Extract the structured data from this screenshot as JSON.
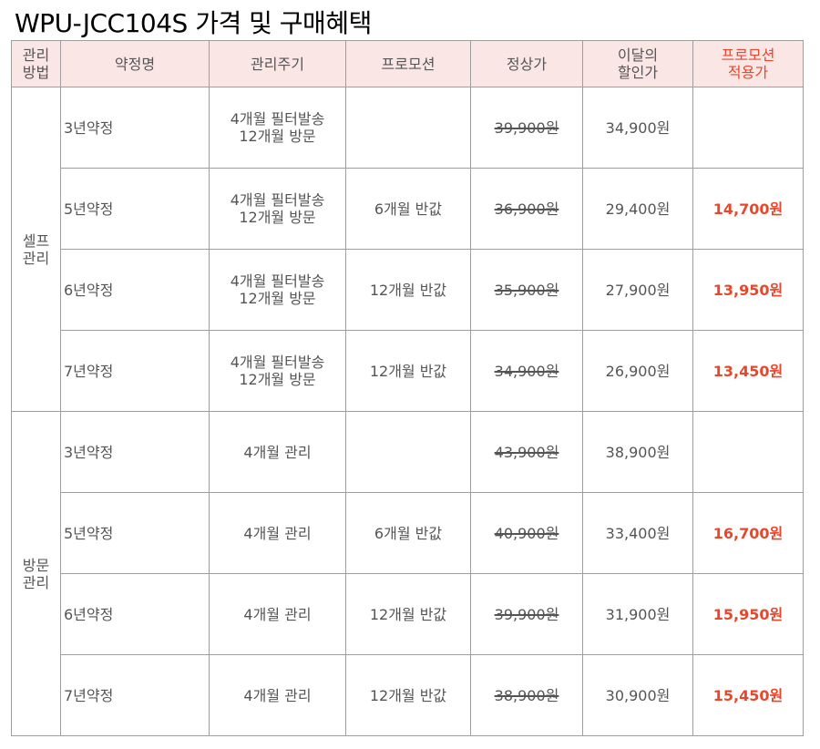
{
  "title": "WPU-JCC104S 가격 및 구매혜택",
  "headers": {
    "method": [
      "관리",
      "방법"
    ],
    "contract": "약정명",
    "cycle": "관리주기",
    "promotion": "프로모션",
    "regular": "정상가",
    "discount": [
      "이달의",
      "할인가"
    ],
    "promo_price": [
      "프로모션",
      "적용가"
    ]
  },
  "groups": [
    {
      "method": [
        "셀프",
        "관리"
      ],
      "rows": [
        {
          "term": "3년약정",
          "cycle": [
            "4개월 필터발송",
            "12개월 방문"
          ],
          "promotion": "",
          "regular": "39,900원",
          "discount": "34,900원",
          "promo_price": ""
        },
        {
          "term": "5년약정",
          "cycle": [
            "4개월 필터발송",
            "12개월 방문"
          ],
          "promotion": "6개월 반값",
          "regular": "36,900원",
          "discount": "29,400원",
          "promo_price": "14,700원"
        },
        {
          "term": "6년약정",
          "cycle": [
            "4개월 필터발송",
            "12개월 방문"
          ],
          "promotion": "12개월 반값",
          "regular": "35,900원",
          "discount": "27,900원",
          "promo_price": "13,950원"
        },
        {
          "term": "7년약정",
          "cycle": [
            "4개월 필터발송",
            "12개월 방문"
          ],
          "promotion": "12개월 반값",
          "regular": "34,900원",
          "discount": "26,900원",
          "promo_price": "13,450원"
        }
      ]
    },
    {
      "method": [
        "방문",
        "관리"
      ],
      "rows": [
        {
          "term": "3년약정",
          "cycle": [
            "4개월 관리"
          ],
          "promotion": "",
          "regular": "43,900원",
          "discount": "38,900원",
          "promo_price": ""
        },
        {
          "term": "5년약정",
          "cycle": [
            "4개월 관리"
          ],
          "promotion": "6개월 반값",
          "regular": "40,900원",
          "discount": "33,400원",
          "promo_price": "16,700원"
        },
        {
          "term": "6년약정",
          "cycle": [
            "4개월 관리"
          ],
          "promotion": "12개월 반값",
          "regular": "39,900원",
          "discount": "31,900원",
          "promo_price": "15,950원"
        },
        {
          "term": "7년약정",
          "cycle": [
            "4개월 관리"
          ],
          "promotion": "12개월 반값",
          "regular": "38,900원",
          "discount": "30,900원",
          "promo_price": "15,450원"
        }
      ]
    }
  ]
}
